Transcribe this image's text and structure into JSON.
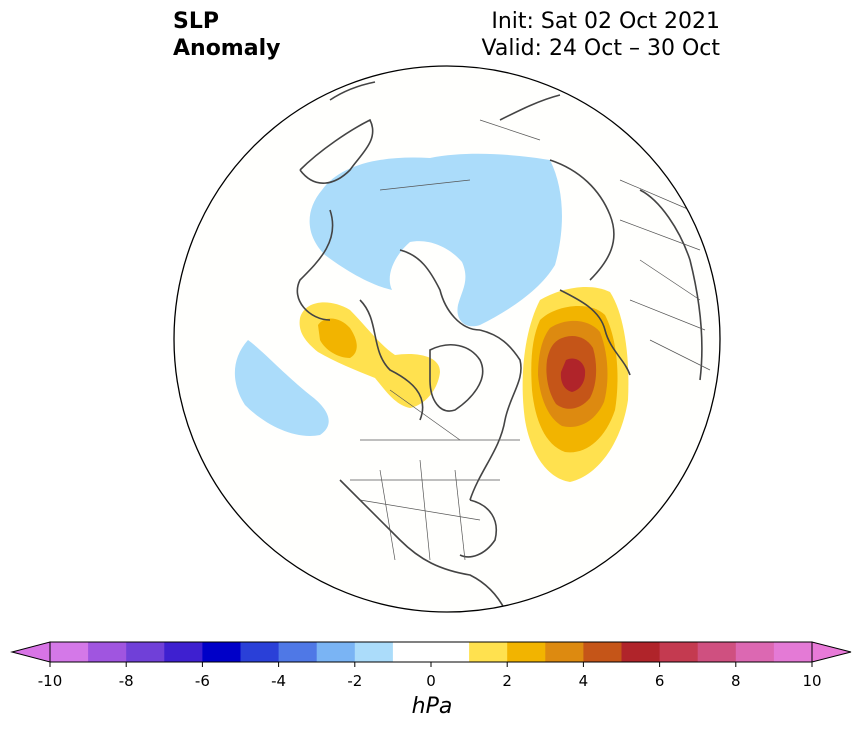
{
  "title": {
    "left_line1": "SLP",
    "left_line2": "Anomaly",
    "init": "Init: Sat 02 Oct 2021",
    "valid": "Valid: 24 Oct – 30 Oct"
  },
  "colorbar": {
    "unit": "hPa",
    "ticks": [
      "-10",
      "-8",
      "-6",
      "-4",
      "-2",
      "0",
      "2",
      "4",
      "6",
      "8",
      "10"
    ],
    "tick_values": [
      -10,
      -8,
      -6,
      -4,
      -2,
      0,
      2,
      4,
      6,
      8,
      10
    ],
    "colors": [
      "#d478e8",
      "#a055e0",
      "#7040d8",
      "#3e20d0",
      "#0000c8",
      "#2a40d8",
      "#4f78e6",
      "#7ab4f4",
      "#abdcfa",
      "#ffffff",
      "#ffffff",
      "#ffe14f",
      "#f2b400",
      "#dd8a10",
      "#c55518",
      "#b0242a",
      "#c43a50",
      "#cf5080",
      "#dc68b2",
      "#e47ad6"
    ],
    "extend_low_color": "#d874e6",
    "extend_high_color": "#e87ad8"
  },
  "map": {
    "projection": "north-polar-stereographic",
    "features": [
      {
        "name": "negative-anomaly-eurasia-arctic",
        "color": "#abdcfa",
        "level": "-1 to -2 hPa"
      },
      {
        "name": "negative-anomaly-north-pacific",
        "color": "#abdcfa",
        "level": "-1 to -2 hPa"
      },
      {
        "name": "positive-anomaly-alaska-canada",
        "color": "#ffe14f",
        "level": "1 to 3 hPa"
      },
      {
        "name": "positive-anomaly-north-atlantic",
        "color": "#b0242a",
        "level": "1 to 6 hPa"
      }
    ]
  }
}
